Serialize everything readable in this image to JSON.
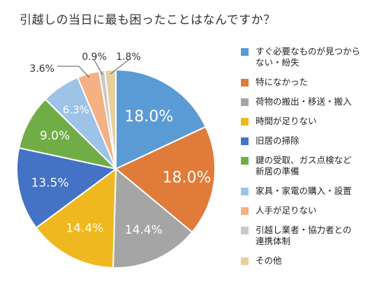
{
  "chart_data": {
    "type": "pie",
    "title": "引越しの当日に最も困ったことはなんですか？",
    "categories": [
      "すぐ必要なものが見つからない・紛失",
      "特になかった",
      "荷物の搬出・移送・搬入",
      "時間が足りない",
      "旧居の掃除",
      "鍵の受取、ガス点検など新居の準備",
      "家具・家電の購入・設置",
      "人手が足りない",
      "引越し業者・協力者との連携体制",
      "その他"
    ],
    "values": [
      18.0,
      18.0,
      14.4,
      14.4,
      13.5,
      9.0,
      6.3,
      3.6,
      0.9,
      1.8
    ],
    "data_labels": [
      "18.0%",
      "18.0%",
      "14.4%",
      "14.4%",
      "13.5%",
      "9.0%",
      "6.3%",
      "3.6%",
      "0.9%",
      "1.8%"
    ],
    "legend_labels": [
      "すぐ必要なものが見つから\nない・紛失",
      "特になかった",
      "荷物の搬出・移送・搬入",
      "時間が足りない",
      "旧居の掃除",
      "鍵の受取、ガス点検など\n新居の準備",
      "家具・家電の購入・設置",
      "人手が足りない",
      "引越し業者・協力者との\n連携体制",
      "その他"
    ],
    "colors": [
      "#5b9bd5",
      "#e07b39",
      "#a5a5a5",
      "#f0b820",
      "#4472c4",
      "#70ad47",
      "#9dc3e6",
      "#f4b183",
      "#c9c9c9",
      "#e8cfa0"
    ],
    "label_colors": [
      "#ffffff",
      "#ffffff",
      "#ffffff",
      "#ffffff",
      "#ffffff",
      "#ffffff",
      "#ffffff",
      "#333333",
      "#333333",
      "#333333"
    ],
    "start_angle_deg": 0,
    "direction": "clockwise",
    "legend_position": "right"
  }
}
